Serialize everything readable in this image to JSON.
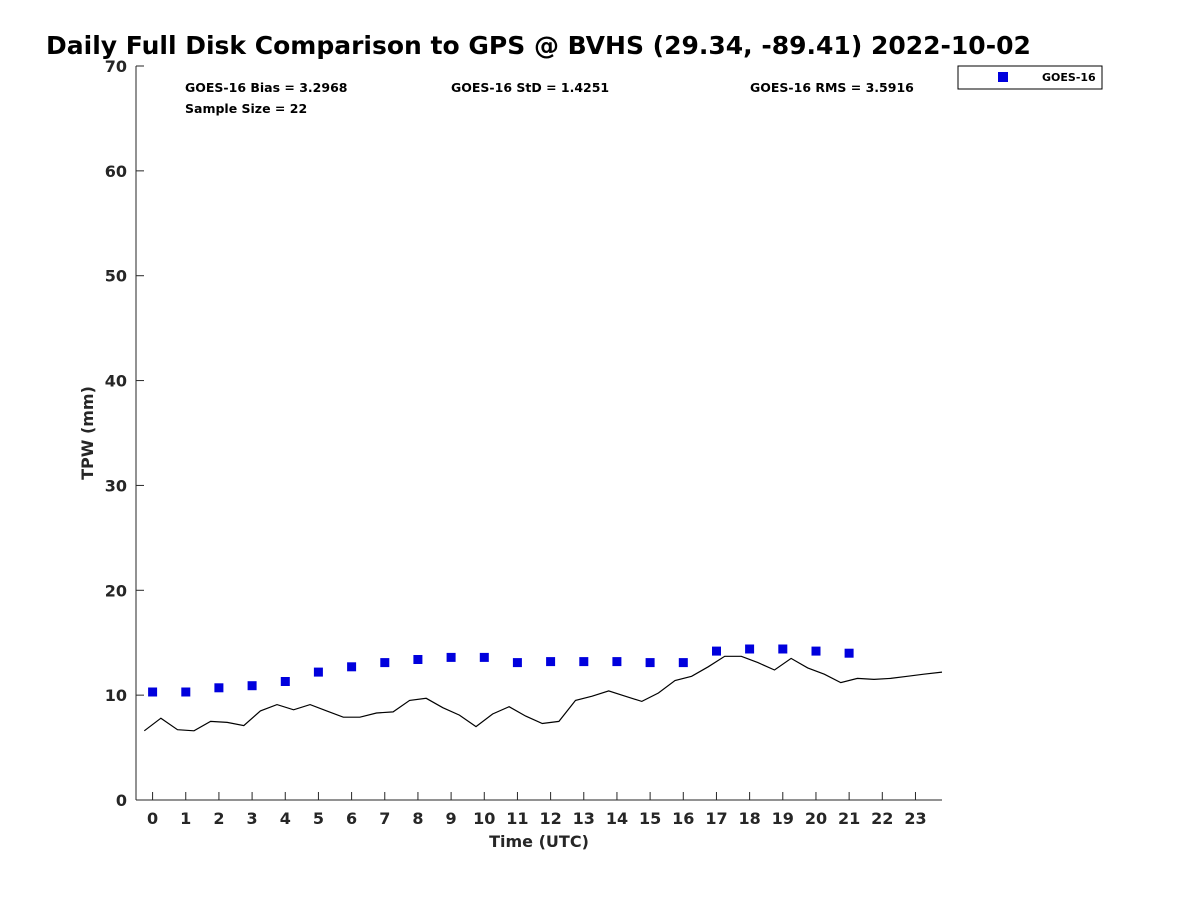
{
  "chart_data": {
    "type": "scatter",
    "title": "Daily Full Disk Comparison to GPS @ BVHS (29.34, -89.41) 2022-10-02",
    "xlabel": "Time (UTC)",
    "ylabel": "TPW (mm)",
    "xlim": [
      -0.5,
      23.8
    ],
    "ylim": [
      0,
      70
    ],
    "x_ticks": [
      "0",
      "1",
      "2",
      "3",
      "4",
      "5",
      "6",
      "7",
      "8",
      "9",
      "10",
      "11",
      "12",
      "13",
      "14",
      "15",
      "16",
      "17",
      "18",
      "19",
      "20",
      "21",
      "22",
      "23"
    ],
    "y_ticks": [
      "0",
      "10",
      "20",
      "30",
      "40",
      "50",
      "60",
      "70"
    ],
    "stats": {
      "bias": "GOES-16 Bias = 3.2968",
      "std": "GOES-16 StD = 1.4251",
      "rms": "GOES-16 RMS = 3.5916",
      "sample": "Sample Size = 22"
    },
    "legend": {
      "position": "top-right",
      "entries": [
        "GOES-16"
      ]
    },
    "series": [
      {
        "name": "GOES-16",
        "kind": "scatter",
        "marker": "square",
        "color": "#0000dd",
        "x": [
          0,
          1,
          2,
          3,
          4,
          5,
          6,
          7,
          8,
          9,
          10,
          11,
          12,
          13,
          14,
          15,
          16,
          17,
          18,
          19,
          20,
          21
        ],
        "y": [
          10.3,
          10.3,
          10.7,
          10.9,
          11.3,
          12.2,
          12.7,
          13.1,
          13.4,
          13.6,
          13.6,
          13.1,
          13.2,
          13.2,
          13.2,
          13.1,
          13.1,
          14.2,
          14.4,
          14.4,
          14.2,
          14.0
        ]
      },
      {
        "kind": "line",
        "color": "#000000",
        "x": [
          -0.25,
          0.25,
          0.75,
          1.25,
          1.75,
          2.25,
          2.75,
          3.25,
          3.75,
          4.25,
          4.75,
          5.25,
          5.75,
          6.25,
          6.75,
          7.25,
          7.75,
          8.25,
          8.75,
          9.25,
          9.75,
          10.25,
          10.75,
          11.25,
          11.75,
          12.25,
          12.75,
          13.25,
          13.75,
          14.25,
          14.75,
          15.25,
          15.75,
          16.25,
          16.75,
          17.25,
          17.75,
          18.25,
          18.75,
          19.25,
          19.75,
          20.25,
          20.75,
          21.25,
          21.75,
          22.25,
          22.75,
          23.25,
          23.8
        ],
        "y": [
          6.6,
          7.8,
          6.7,
          6.6,
          7.5,
          7.4,
          7.1,
          8.5,
          9.1,
          8.6,
          9.1,
          8.5,
          7.9,
          7.9,
          8.3,
          8.4,
          9.5,
          9.7,
          8.8,
          8.1,
          7.0,
          8.2,
          8.9,
          8.0,
          7.3,
          7.5,
          9.5,
          9.9,
          10.4,
          9.9,
          9.4,
          10.2,
          11.4,
          11.8,
          12.7,
          13.7,
          13.7,
          13.1,
          12.4,
          13.5,
          12.6,
          12.0,
          11.2,
          11.6,
          11.5,
          11.6,
          11.8,
          12.0,
          12.2
        ]
      }
    ]
  }
}
